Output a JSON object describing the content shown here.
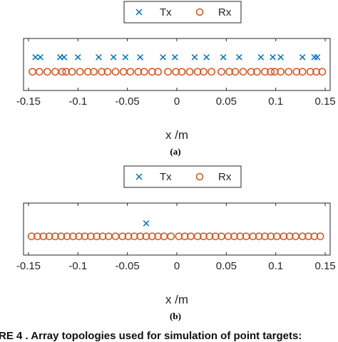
{
  "legend": {
    "tx_label": "Tx",
    "rx_label": "Rx"
  },
  "caption": "RE 4 . Array topologies used for simulation of point targets:",
  "colors": {
    "tx": "#0072bd",
    "rx": "#d95319",
    "axis": "#262626"
  },
  "chart_data": [
    {
      "type": "scatter",
      "panel_label": "(a)",
      "xlabel": "x /m",
      "ylabel": "",
      "xlim": [
        -0.155,
        0.155
      ],
      "ylim": [
        -1,
        1
      ],
      "xticks": [
        -0.15,
        -0.1,
        -0.05,
        0,
        0.05,
        0.1,
        0.15
      ],
      "xtick_labels": [
        "-0.15",
        "-0.1",
        "-0.05",
        "0",
        "0.05",
        "0.1",
        "0.15"
      ],
      "grid": false,
      "legend_position": "top-center",
      "series": [
        {
          "name": "Tx",
          "marker": "x",
          "y": 0.28,
          "x": [
            -0.143,
            -0.138,
            -0.118,
            -0.114,
            -0.1,
            -0.079,
            -0.064,
            -0.052,
            -0.037,
            -0.014,
            -0.002,
            0.018,
            0.03,
            0.047,
            0.063,
            0.085,
            0.097,
            0.105,
            0.127,
            0.139,
            0.142
          ]
        },
        {
          "name": "Rx",
          "marker": "o",
          "y": -0.28,
          "x": [
            -0.146,
            -0.139,
            -0.131,
            -0.123,
            -0.116,
            -0.112,
            -0.106,
            -0.098,
            -0.09,
            -0.084,
            -0.076,
            -0.07,
            -0.062,
            -0.054,
            -0.047,
            -0.039,
            -0.033,
            -0.025,
            -0.019,
            -0.009,
            -0.001,
            0.005,
            0.013,
            0.021,
            0.027,
            0.035,
            0.045,
            0.053,
            0.059,
            0.067,
            0.075,
            0.081,
            0.089,
            0.095,
            0.099,
            0.105,
            0.113,
            0.121,
            0.127,
            0.135,
            0.141,
            0.147
          ]
        }
      ]
    },
    {
      "type": "scatter",
      "panel_label": "(b)",
      "xlabel": "x /m",
      "ylabel": "",
      "xlim": [
        -0.155,
        0.155
      ],
      "ylim": [
        -1,
        1
      ],
      "xticks": [
        -0.15,
        -0.1,
        -0.05,
        0,
        0.05,
        0.1,
        0.15
      ],
      "xtick_labels": [
        "-0.15",
        "-0.1",
        "-0.05",
        "0",
        "0.05",
        "0.1",
        "0.15"
      ],
      "grid": false,
      "legend_position": "top-center",
      "series": [
        {
          "name": "Tx",
          "marker": "x",
          "y": 0.22,
          "x": [
            -0.031
          ]
        },
        {
          "name": "Rx",
          "marker": "o",
          "y": -0.28,
          "x": [
            -0.147,
            -0.141,
            -0.135,
            -0.129,
            -0.123,
            -0.117,
            -0.111,
            -0.105,
            -0.099,
            -0.093,
            -0.087,
            -0.081,
            -0.075,
            -0.069,
            -0.062,
            -0.055,
            -0.049,
            -0.043,
            -0.037,
            -0.031,
            -0.025,
            -0.019,
            -0.013,
            -0.006,
            0.002,
            0.008,
            0.014,
            0.021,
            0.027,
            0.033,
            0.039,
            0.045,
            0.052,
            0.058,
            0.064,
            0.07,
            0.077,
            0.083,
            0.089,
            0.095,
            0.101,
            0.108,
            0.114,
            0.12,
            0.127,
            0.133,
            0.139,
            0.145
          ]
        }
      ]
    }
  ]
}
